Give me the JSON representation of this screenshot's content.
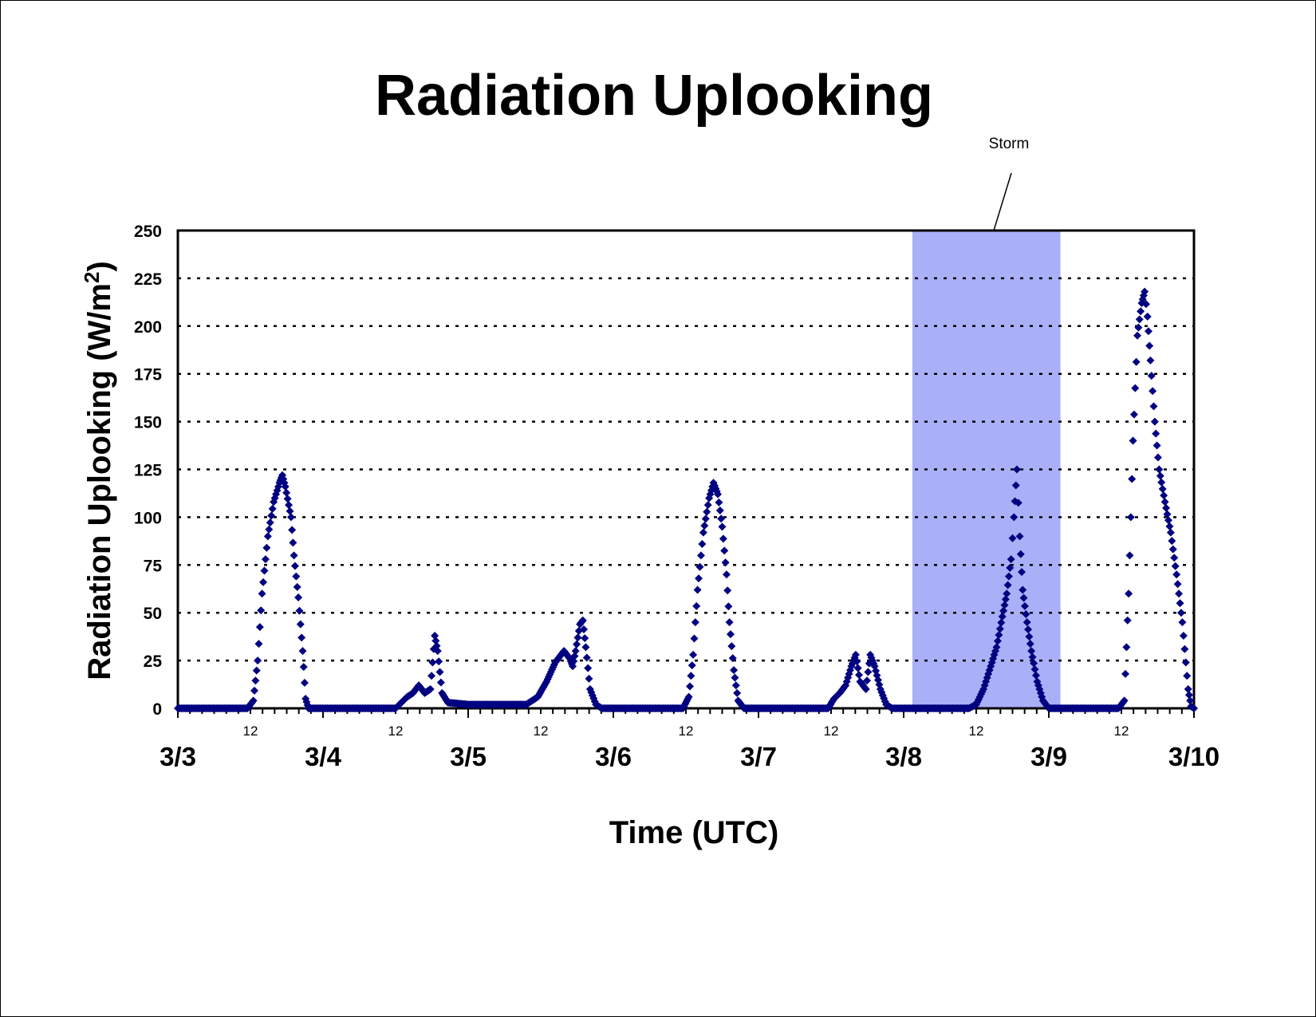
{
  "colors": {
    "series": "#000080",
    "storm_band": "#aab0f8",
    "gridline": "#000000",
    "axis": "#000000"
  },
  "chart_data": {
    "type": "scatter",
    "title": "Radiation Uplooking",
    "xlabel": "Time (UTC)",
    "ylabel_main": "Radiation Uplooking (W/m",
    "ylabel_sup": "2",
    "ylabel_close": ")",
    "ylim": [
      0,
      250
    ],
    "yticks": [
      0,
      25,
      50,
      75,
      100,
      125,
      150,
      175,
      200,
      225,
      250
    ],
    "grid": "horizontal dotted",
    "xlim_days": [
      0,
      7
    ],
    "date_labels": [
      "3/3",
      "3/4",
      "3/5",
      "3/6",
      "3/7",
      "3/8",
      "3/9",
      "3/10"
    ],
    "hour_label": "12",
    "annotation": {
      "text": "Storm",
      "x_start_day": 5.06,
      "x_end_day": 6.08
    },
    "series": [
      {
        "marker": "diamond",
        "points_day_value": [
          [
            0.0,
            0
          ],
          [
            0.25,
            0
          ],
          [
            0.48,
            0
          ],
          [
            0.52,
            4
          ],
          [
            0.55,
            25
          ],
          [
            0.58,
            60
          ],
          [
            0.62,
            90
          ],
          [
            0.66,
            108
          ],
          [
            0.7,
            118
          ],
          [
            0.72,
            122
          ],
          [
            0.74,
            116
          ],
          [
            0.78,
            100
          ],
          [
            0.8,
            80
          ],
          [
            0.83,
            58
          ],
          [
            0.86,
            30
          ],
          [
            0.88,
            5
          ],
          [
            0.9,
            0
          ],
          [
            1.2,
            0
          ],
          [
            1.5,
            0
          ],
          [
            1.54,
            3
          ],
          [
            1.58,
            6
          ],
          [
            1.62,
            8
          ],
          [
            1.66,
            12
          ],
          [
            1.7,
            8
          ],
          [
            1.74,
            10
          ],
          [
            1.77,
            38
          ],
          [
            1.79,
            30
          ],
          [
            1.82,
            8
          ],
          [
            1.86,
            3
          ],
          [
            2.0,
            2
          ],
          [
            2.2,
            2
          ],
          [
            2.4,
            2
          ],
          [
            2.48,
            6
          ],
          [
            2.54,
            14
          ],
          [
            2.6,
            24
          ],
          [
            2.66,
            30
          ],
          [
            2.7,
            26
          ],
          [
            2.72,
            22
          ],
          [
            2.74,
            30
          ],
          [
            2.77,
            44
          ],
          [
            2.79,
            46
          ],
          [
            2.81,
            32
          ],
          [
            2.84,
            10
          ],
          [
            2.88,
            2
          ],
          [
            2.92,
            0
          ],
          [
            3.2,
            0
          ],
          [
            3.48,
            0
          ],
          [
            3.52,
            6
          ],
          [
            3.55,
            28
          ],
          [
            3.58,
            62
          ],
          [
            3.62,
            92
          ],
          [
            3.66,
            110
          ],
          [
            3.69,
            118
          ],
          [
            3.72,
            112
          ],
          [
            3.75,
            95
          ],
          [
            3.78,
            70
          ],
          [
            3.8,
            45
          ],
          [
            3.83,
            20
          ],
          [
            3.86,
            4
          ],
          [
            3.9,
            0
          ],
          [
            4.2,
            0
          ],
          [
            4.48,
            0
          ],
          [
            4.52,
            5
          ],
          [
            4.56,
            8
          ],
          [
            4.6,
            12
          ],
          [
            4.64,
            22
          ],
          [
            4.67,
            28
          ],
          [
            4.7,
            14
          ],
          [
            4.74,
            10
          ],
          [
            4.77,
            28
          ],
          [
            4.8,
            22
          ],
          [
            4.84,
            10
          ],
          [
            4.88,
            2
          ],
          [
            4.92,
            0
          ],
          [
            5.2,
            0
          ],
          [
            5.45,
            0
          ],
          [
            5.5,
            2
          ],
          [
            5.55,
            10
          ],
          [
            5.6,
            22
          ],
          [
            5.64,
            32
          ],
          [
            5.68,
            48
          ],
          [
            5.71,
            60
          ],
          [
            5.74,
            78
          ],
          [
            5.76,
            100
          ],
          [
            5.78,
            125
          ],
          [
            5.8,
            90
          ],
          [
            5.82,
            62
          ],
          [
            5.85,
            45
          ],
          [
            5.88,
            30
          ],
          [
            5.92,
            14
          ],
          [
            5.96,
            4
          ],
          [
            6.0,
            0
          ],
          [
            6.2,
            0
          ],
          [
            6.48,
            0
          ],
          [
            6.52,
            4
          ],
          [
            6.55,
            60
          ],
          [
            6.58,
            140
          ],
          [
            6.61,
            195
          ],
          [
            6.64,
            212
          ],
          [
            6.66,
            218
          ],
          [
            6.68,
            205
          ],
          [
            6.7,
            182
          ],
          [
            6.73,
            150
          ],
          [
            6.76,
            125
          ],
          [
            6.8,
            108
          ],
          [
            6.84,
            92
          ],
          [
            6.88,
            70
          ],
          [
            6.92,
            45
          ],
          [
            6.96,
            10
          ],
          [
            6.98,
            1
          ],
          [
            7.0,
            0
          ]
        ]
      }
    ]
  }
}
